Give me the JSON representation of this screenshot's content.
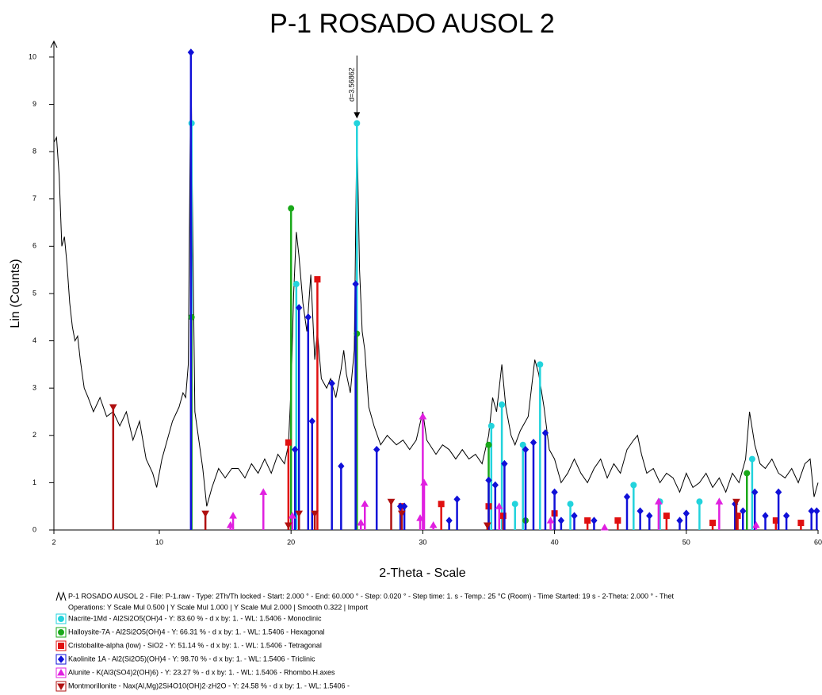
{
  "chart_data": {
    "type": "line",
    "title": "P-1 ROSADO AUSOL 2",
    "x_label": "2-Theta - Scale",
    "y_label": "Lin (Counts)",
    "xlim": [
      2,
      60
    ],
    "ylim": [
      0,
      10.2
    ],
    "xticks": [
      2,
      10,
      20,
      30,
      40,
      50,
      60
    ],
    "yticks": [
      0,
      1,
      2,
      3,
      4,
      5,
      6,
      7,
      8,
      9,
      10
    ],
    "annotation": {
      "text": "d=3.56862",
      "x": 25,
      "y": 8.7
    },
    "operations": "Operations: Y Scale Mul 0.500 | Y Scale Mul 1.000 | Y Scale Mul 2.000 | Smooth 0.322 | Import",
    "series": [
      {
        "name": "P-1 ROSADO AUSOL 2 - File: P-1.raw - Type: 2Th/Th locked - Start: 2.000 ° - End: 60.000 ° - Step: 0.020 ° - Step time: 1. s - Temp.: 25 °C (Room) - Time Started: 19 s - 2-Theta: 2.000 ° - Thet",
        "color": "#000000",
        "style": "line",
        "x": [
          2.0,
          2.2,
          2.4,
          2.6,
          2.8,
          3.0,
          3.2,
          3.4,
          3.6,
          3.8,
          4.0,
          4.3,
          4.6,
          5.0,
          5.5,
          6.0,
          6.5,
          7.0,
          7.5,
          8.0,
          8.5,
          9.0,
          9.5,
          9.8,
          10.2,
          10.6,
          11.0,
          11.5,
          11.8,
          12.0,
          12.2,
          12.4,
          12.55,
          12.7,
          13.0,
          13.3,
          13.6,
          14.0,
          14.5,
          15.0,
          15.5,
          16.0,
          16.5,
          17.0,
          17.5,
          18.0,
          18.5,
          19.0,
          19.5,
          19.8,
          20.0,
          20.2,
          20.4,
          20.6,
          20.9,
          21.2,
          21.5,
          21.8,
          22.0,
          22.3,
          22.7,
          23.0,
          23.4,
          23.8,
          24.0,
          24.2,
          24.5,
          24.8,
          25.0,
          25.2,
          25.4,
          25.6,
          25.9,
          26.3,
          26.8,
          27.3,
          28.0,
          28.5,
          29.0,
          29.5,
          30.0,
          30.3,
          31.0,
          31.5,
          32.0,
          32.5,
          33.0,
          33.5,
          34.0,
          34.5,
          35.0,
          35.3,
          35.6,
          36.0,
          36.3,
          36.7,
          37.0,
          37.4,
          38.0,
          38.5,
          38.8,
          39.2,
          39.6,
          40.0,
          40.5,
          41.0,
          41.5,
          42.0,
          42.5,
          43.0,
          43.5,
          44.0,
          44.5,
          45.0,
          45.5,
          46.0,
          46.3,
          46.6,
          47.0,
          47.5,
          48.0,
          48.5,
          49.0,
          49.5,
          50.0,
          50.5,
          51.0,
          51.5,
          52.0,
          52.5,
          53.0,
          53.5,
          54.0,
          54.5,
          54.8,
          55.2,
          55.6,
          56.0,
          56.5,
          57.0,
          57.5,
          58.0,
          58.5,
          59.0,
          59.4,
          59.7,
          60.0
        ],
        "values": [
          8.2,
          8.3,
          7.5,
          6.0,
          6.2,
          5.6,
          4.8,
          4.3,
          4.0,
          4.1,
          3.6,
          3.0,
          2.8,
          2.5,
          2.8,
          2.4,
          2.5,
          2.2,
          2.5,
          1.9,
          2.3,
          1.5,
          1.2,
          0.9,
          1.5,
          1.9,
          2.3,
          2.6,
          2.9,
          2.8,
          3.5,
          10.0,
          6.0,
          2.5,
          1.9,
          1.3,
          0.5,
          0.9,
          1.3,
          1.1,
          1.3,
          1.3,
          1.1,
          1.4,
          1.2,
          1.5,
          1.2,
          1.6,
          1.4,
          1.8,
          3.0,
          5.0,
          6.3,
          5.8,
          4.8,
          4.2,
          5.4,
          3.6,
          4.2,
          3.2,
          3.0,
          3.2,
          2.8,
          3.4,
          3.8,
          3.3,
          2.9,
          3.8,
          8.6,
          5.5,
          4.2,
          3.8,
          2.6,
          2.2,
          1.8,
          2.0,
          1.8,
          1.9,
          1.7,
          1.9,
          2.5,
          1.9,
          1.6,
          1.8,
          1.7,
          1.5,
          1.7,
          1.5,
          1.6,
          1.4,
          2.0,
          2.8,
          2.5,
          3.5,
          2.6,
          2.0,
          1.8,
          2.1,
          2.4,
          3.6,
          3.3,
          2.6,
          1.7,
          1.5,
          1.0,
          1.2,
          1.5,
          1.2,
          1.0,
          1.3,
          1.5,
          1.1,
          1.4,
          1.2,
          1.7,
          1.9,
          2.0,
          1.6,
          1.2,
          1.3,
          1.0,
          1.2,
          1.1,
          0.8,
          1.2,
          0.9,
          1.0,
          1.2,
          0.9,
          1.1,
          0.8,
          1.2,
          1.0,
          1.5,
          2.5,
          1.8,
          1.4,
          1.3,
          1.5,
          1.2,
          1.1,
          1.3,
          1.0,
          1.4,
          1.5,
          0.7,
          1.0
        ]
      },
      {
        "name": "Nacrite-1Md - Al2Si2O5(OH)4 - Y: 83.60 % - d x by: 1. - WL: 1.5406 - Monoclinic",
        "color": "#22d3dc",
        "style": "stick",
        "marker": "circle",
        "x": [
          12.45,
          20.4,
          25.0,
          35.2,
          36.0,
          37.0,
          37.6,
          38.9,
          41.2,
          46.0,
          48.0,
          51.0,
          55.0
        ],
        "values": [
          8.6,
          5.2,
          8.6,
          2.2,
          2.65,
          0.55,
          1.8,
          3.5,
          0.55,
          0.95,
          0.6,
          0.6,
          1.5
        ]
      },
      {
        "name": "Halloysite-7A - Al2Si2O5(OH)4 - Y: 66.31 % - d x by: 1. - WL: 1.5406 - Hexagonal",
        "color": "#1aa81a",
        "style": "stick",
        "marker": "circle",
        "x": [
          12.45,
          20.0,
          25.0,
          35.0,
          37.8,
          54.6
        ],
        "values": [
          4.5,
          6.8,
          4.15,
          1.8,
          0.2,
          1.2
        ]
      },
      {
        "name": "Cristobalite-alpha (low) - SiO2 - Y: 51.14 % - d x by: 1. - WL: 1.5406 - Tetragonal",
        "color": "#e01010",
        "style": "stick",
        "marker": "square",
        "x": [
          19.8,
          22.0,
          28.4,
          31.4,
          35.0,
          36.1,
          40.0,
          42.5,
          44.8,
          48.5,
          52.0,
          53.9,
          56.8,
          58.7
        ],
        "values": [
          1.85,
          5.3,
          0.5,
          0.55,
          0.5,
          0.3,
          0.35,
          0.2,
          0.2,
          0.3,
          0.15,
          0.3,
          0.2,
          0.15
        ]
      },
      {
        "name": "Kaolinite 1A - Al2(Si2O5)(OH)4 - Y: 98.70 % - d x by: 1. - WL: 1.5406 - Triclinic",
        "color": "#1010d8",
        "style": "stick",
        "marker": "diamond",
        "x": [
          12.4,
          20.3,
          20.6,
          21.3,
          21.6,
          23.1,
          23.8,
          24.9,
          26.5,
          28.3,
          28.6,
          32.0,
          32.6,
          35.0,
          35.5,
          36.2,
          37.8,
          38.4,
          39.3,
          40.0,
          40.5,
          41.5,
          43.0,
          45.5,
          46.5,
          47.2,
          49.5,
          50.0,
          53.7,
          54.3,
          55.2,
          56.0,
          57.0,
          57.6,
          59.5,
          59.9
        ],
        "values": [
          10.1,
          1.7,
          4.7,
          4.5,
          2.3,
          3.1,
          1.35,
          5.2,
          1.7,
          0.5,
          0.5,
          0.2,
          0.65,
          1.05,
          0.95,
          1.4,
          1.7,
          1.85,
          2.05,
          0.8,
          0.2,
          0.3,
          0.2,
          0.7,
          0.4,
          0.3,
          0.2,
          0.35,
          0.55,
          0.4,
          0.8,
          0.3,
          0.8,
          0.3,
          0.4,
          0.4
        ]
      },
      {
        "name": "Alunite - K(Al3(SO4)2(OH)6) - Y: 23.27 % - d x by: 1. - WL: 1.5406 - Rhombo.H.axes",
        "color": "#e020e0",
        "style": "stick",
        "marker": "triangle",
        "x": [
          15.4,
          15.6,
          17.9,
          20.1,
          25.3,
          25.6,
          29.8,
          30.0,
          30.1,
          30.8,
          35.8,
          39.7,
          43.8,
          47.9,
          52.5,
          55.3
        ],
        "values": [
          0.1,
          0.3,
          0.8,
          0.3,
          0.15,
          0.55,
          0.25,
          2.4,
          1.0,
          0.1,
          0.5,
          0.2,
          0.05,
          0.6,
          0.6,
          0.1
        ]
      },
      {
        "name": "Montmorillonite - Nax(Al,Mg)2Si4O10(OH)2·zH2O - Y: 24.58 % - d x by: 1. - WL: 1.5406 -",
        "color": "#b01010",
        "style": "stick",
        "marker": "invtriangle",
        "x": [
          6.5,
          13.5,
          19.8,
          20.6,
          21.8,
          27.6,
          28.4,
          34.9,
          53.8
        ],
        "values": [
          2.6,
          0.35,
          0.1,
          0.35,
          0.35,
          0.6,
          0.35,
          0.1,
          0.6
        ]
      }
    ]
  }
}
